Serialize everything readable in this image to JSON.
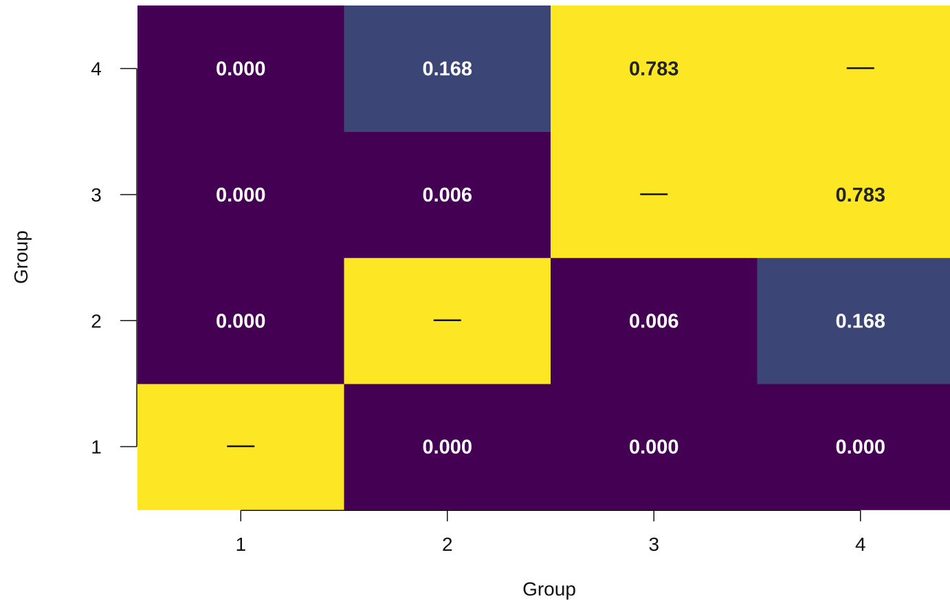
{
  "chart_data": {
    "type": "heatmap",
    "title": "",
    "xlabel": "Group",
    "ylabel": "Group",
    "x_categories": [
      "1",
      "2",
      "3",
      "4"
    ],
    "y_categories": [
      "1",
      "2",
      "3",
      "4"
    ],
    "diagonal_mark": "—",
    "cells": [
      {
        "x": "1",
        "y": "1",
        "value": null,
        "label": "—"
      },
      {
        "x": "2",
        "y": "1",
        "value": 0.0,
        "label": "0.000"
      },
      {
        "x": "3",
        "y": "1",
        "value": 0.0,
        "label": "0.000"
      },
      {
        "x": "4",
        "y": "1",
        "value": 0.0,
        "label": "0.000"
      },
      {
        "x": "1",
        "y": "2",
        "value": 0.0,
        "label": "0.000"
      },
      {
        "x": "2",
        "y": "2",
        "value": null,
        "label": "—"
      },
      {
        "x": "3",
        "y": "2",
        "value": 0.006,
        "label": "0.006"
      },
      {
        "x": "4",
        "y": "2",
        "value": 0.168,
        "label": "0.168"
      },
      {
        "x": "1",
        "y": "3",
        "value": 0.0,
        "label": "0.000"
      },
      {
        "x": "2",
        "y": "3",
        "value": 0.006,
        "label": "0.006"
      },
      {
        "x": "3",
        "y": "3",
        "value": null,
        "label": "—"
      },
      {
        "x": "4",
        "y": "3",
        "value": 0.783,
        "label": "0.783"
      },
      {
        "x": "1",
        "y": "4",
        "value": 0.0,
        "label": "0.000"
      },
      {
        "x": "2",
        "y": "4",
        "value": 0.168,
        "label": "0.168"
      },
      {
        "x": "3",
        "y": "4",
        "value": 0.783,
        "label": "0.783"
      },
      {
        "x": "4",
        "y": "4",
        "value": null,
        "label": "—"
      }
    ],
    "colors": {
      "low": "#440154",
      "mid": "#3B4676",
      "high": "#FDE725",
      "light_text": "#FFFFFF",
      "dark_text": "#222222",
      "axis": "#111111"
    },
    "grid": false,
    "legend": "none"
  }
}
